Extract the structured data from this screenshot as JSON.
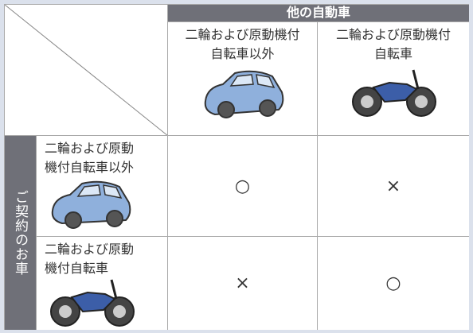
{
  "table": {
    "column_group": "他の自動車",
    "row_group": "ご契約のお車",
    "columns": [
      [
        "二輪および原動機付",
        "自転車以外"
      ],
      [
        "二輪および原動機付",
        "自転車"
      ]
    ],
    "rows": [
      [
        "二輪および原動",
        "機付自転車以外"
      ],
      [
        "二輪および原動",
        "機付自転車"
      ]
    ],
    "cells": [
      [
        "○",
        "×"
      ],
      [
        "×",
        "○"
      ]
    ]
  }
}
